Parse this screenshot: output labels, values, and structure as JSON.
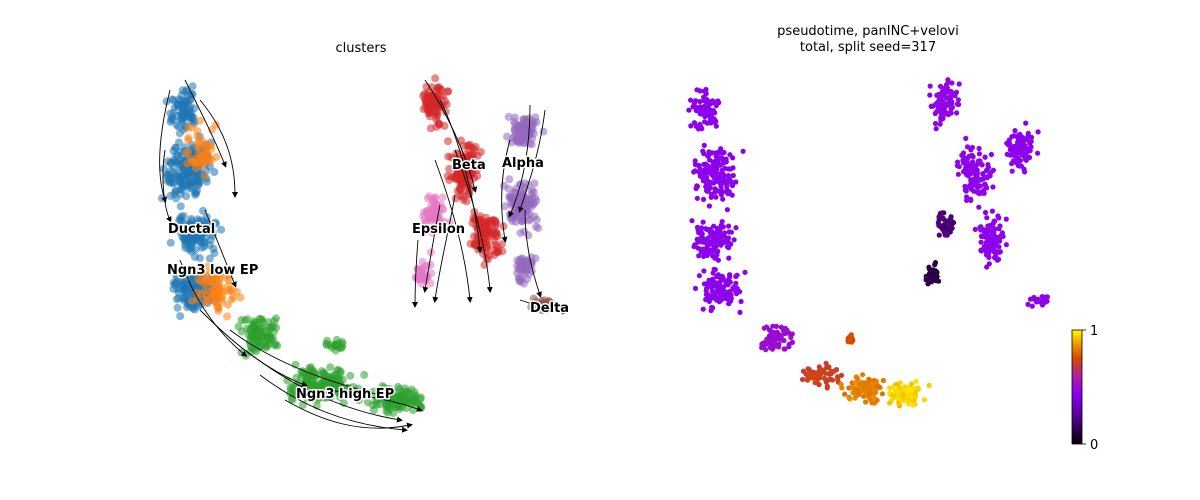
{
  "chart_data": [
    {
      "type": "scatter",
      "title": "clusters",
      "xlabel": "",
      "ylabel": "",
      "grid": false,
      "legend": "on data",
      "overlay": "velocity stream arrows",
      "clusters": [
        {
          "name": "Ductal",
          "color": "#1f77b4"
        },
        {
          "name": "Ngn3 low EP",
          "color": "#ff7f0e"
        },
        {
          "name": "Ngn3 high EP",
          "color": "#2ca02c"
        },
        {
          "name": "Beta",
          "color": "#d62728"
        },
        {
          "name": "Alpha",
          "color": "#9467bd"
        },
        {
          "name": "Delta",
          "color": "#8c564b"
        },
        {
          "name": "Epsilon",
          "color": "#e377c2"
        }
      ]
    },
    {
      "type": "scatter",
      "title": "pseudotime, panINC+velovi",
      "subtitle": "total, split seed=317",
      "xlabel": "",
      "ylabel": "",
      "grid": false,
      "colormap": "gnuplot",
      "colorbar": {
        "min": 0,
        "max": 1,
        "ticks": [
          "0",
          "1"
        ]
      }
    }
  ]
}
